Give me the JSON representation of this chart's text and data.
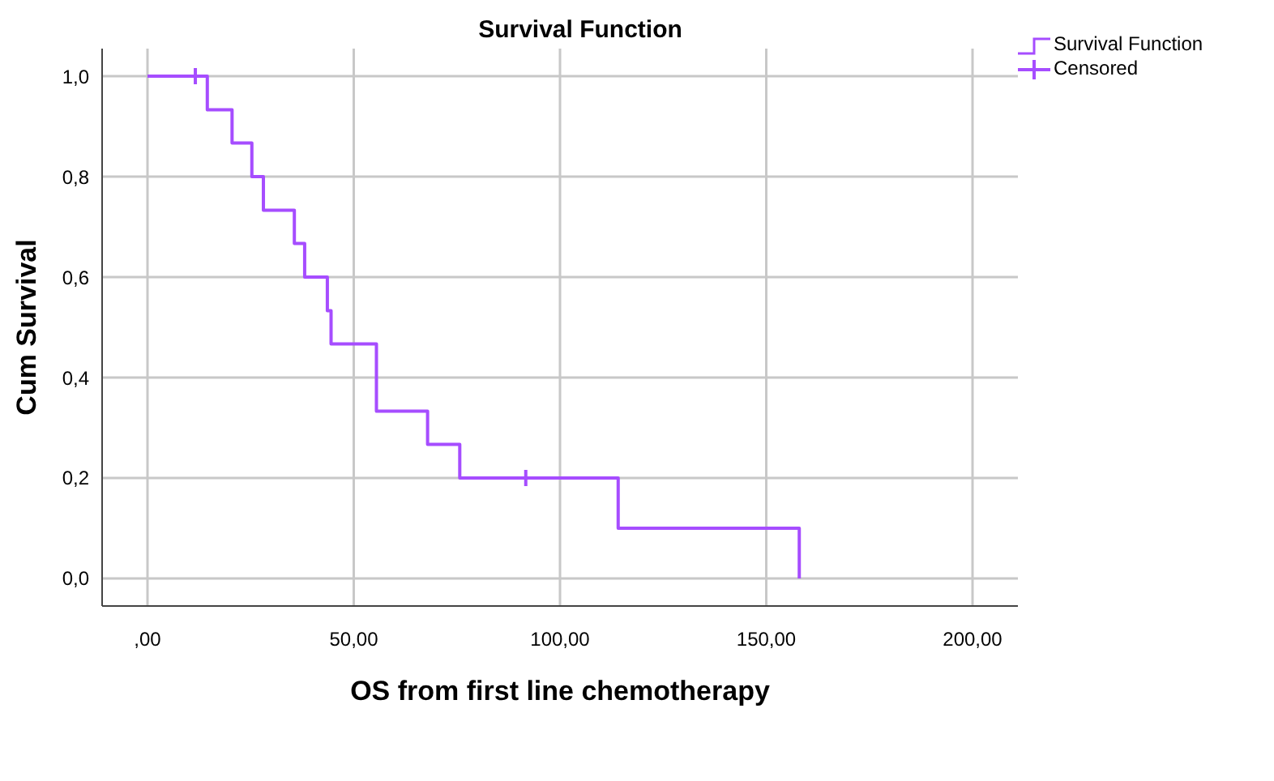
{
  "chart_data": {
    "type": "step",
    "title": "Survival Function",
    "xlabel": "OS from first line chemotherapy",
    "ylabel": "Cum Survival",
    "xlim": [
      -11,
      211
    ],
    "xticks": [
      {
        "value": 0,
        "label": ",00"
      },
      {
        "value": 50,
        "label": "50,00"
      },
      {
        "value": 100,
        "label": "100,00"
      },
      {
        "value": 150,
        "label": "150,00"
      },
      {
        "value": 200,
        "label": "200,00"
      }
    ],
    "ylim": [
      -0.055,
      1.055
    ],
    "yticks": [
      {
        "value": 0,
        "label": "0,0"
      },
      {
        "value": 0.2,
        "label": "0,2"
      },
      {
        "value": 0.4,
        "label": "0,4"
      },
      {
        "value": 0.6,
        "label": "0,6"
      },
      {
        "value": 0.8,
        "label": "0,8"
      },
      {
        "value": 1,
        "label": "1,0"
      }
    ],
    "grid": true,
    "legend": "top right",
    "series": [
      {
        "name": "Survival Function",
        "color": "#a64dff",
        "x": [
          0,
          14.5,
          20.5,
          25.3,
          28.1,
          35.6,
          38.1,
          43.6,
          44.5,
          55.5,
          67.9,
          75.7,
          114.1,
          158
        ],
        "values": [
          1,
          0.933,
          0.867,
          0.8,
          0.733,
          0.667,
          0.6,
          0.533,
          0.467,
          0.333,
          0.267,
          0.2,
          0.1,
          0
        ]
      },
      {
        "name": "Censored",
        "type": "scatter",
        "color": "#a64dff",
        "marker": "cross",
        "x": [
          11.6,
          91.7
        ],
        "values": [
          1,
          0.2
        ]
      }
    ]
  }
}
